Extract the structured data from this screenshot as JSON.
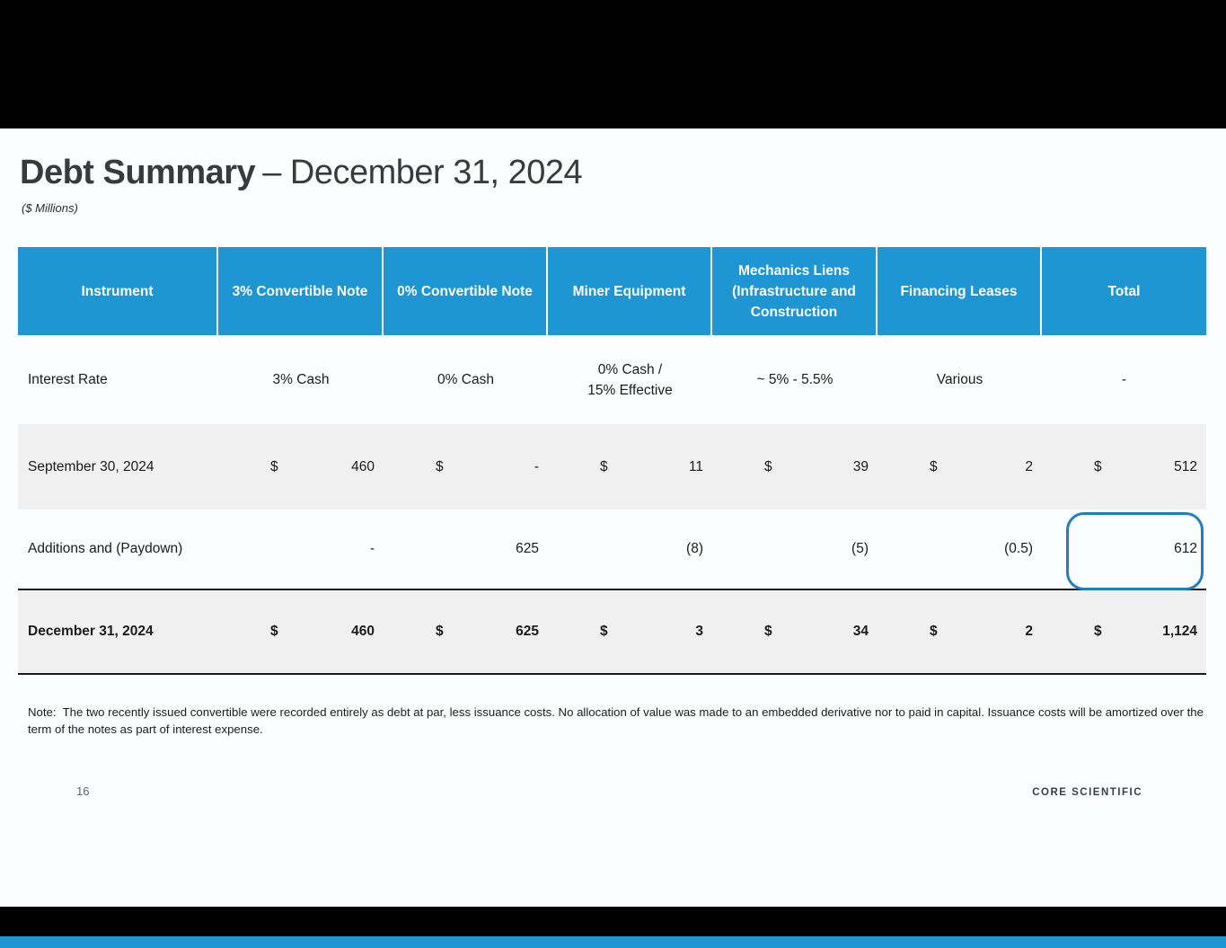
{
  "page": {
    "title_bold": "Debt Summary",
    "title_regular": "– December 31, 2024",
    "subtitle": "($ Millions)",
    "note": "Note:  The two recently issued convertible were recorded entirely as debt at par, less issuance costs. No allocation of value was made to an embedded derivative nor to paid in capital. Issuance costs will be amortized over the term of the notes as part of interest expense.",
    "page_number": "16",
    "logo_text": "CORE SCIENTIFIC"
  },
  "colors": {
    "header_blue": "#1E96D4",
    "row_gray": "#F0F0F1",
    "highlight_outline_blue": "#1D80C6",
    "bottom_strip_blue": "#1E96D4",
    "slide_background": "#FBFDFF",
    "bar_black": "#000000"
  },
  "table": {
    "headers": {
      "instrument": "Instrument",
      "conv3": "3% Convertible Note",
      "conv0": "0% Convertible Note",
      "miner": "Miner Equipment",
      "mechanics": "Mechanics Liens (Infrastructure and Construction",
      "financing": "Financing Leases",
      "total": "Total"
    },
    "interest_row": {
      "label": "Interest Rate",
      "cells": [
        "3% Cash",
        "0% Cash",
        "0% Cash /\n15% Effective",
        "~ 5% - 5.5%",
        "Various",
        "-"
      ]
    },
    "rows": [
      {
        "label": "September 30, 2024",
        "cells": [
          {
            "d": "$",
            "v": "460"
          },
          {
            "d": "$",
            "v": "-"
          },
          {
            "d": "$",
            "v": "11"
          },
          {
            "d": "$",
            "v": "39"
          },
          {
            "d": "$",
            "v": "2"
          },
          {
            "d": "$",
            "v": "512"
          }
        ]
      },
      {
        "label": "Additions and (Paydown)",
        "cells": [
          {
            "d": "",
            "v": "-"
          },
          {
            "d": "",
            "v": "625"
          },
          {
            "d": "",
            "v": "(8)"
          },
          {
            "d": "",
            "v": "(5)"
          },
          {
            "d": "",
            "v": "(0.5)"
          },
          {
            "d": "",
            "v": "612"
          }
        ]
      },
      {
        "label": "December 31, 2024",
        "cells": [
          {
            "d": "$",
            "v": "460"
          },
          {
            "d": "$",
            "v": "625"
          },
          {
            "d": "$",
            "v": "3"
          },
          {
            "d": "$",
            "v": "34"
          },
          {
            "d": "$",
            "v": "2"
          },
          {
            "d": "$",
            "v": "1,124"
          }
        ]
      }
    ]
  }
}
